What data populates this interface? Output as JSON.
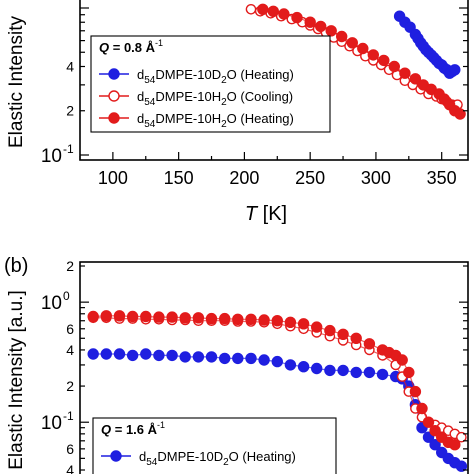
{
  "chart_data": [
    {
      "panel": "a",
      "type": "scatter",
      "xlabel": "T [K]",
      "ylabel": "Elastic Intensity",
      "xlim": [
        75,
        370
      ],
      "ylim_log": [
        0.1,
        1.0
      ],
      "log_y": true,
      "x_ticks": [
        100,
        150,
        200,
        250,
        300,
        350
      ],
      "x_tick_labels": [
        "100",
        "150",
        "200",
        "250",
        "300",
        "350"
      ],
      "y_major_ticks": [
        {
          "value": 0.1,
          "base": "10",
          "exp": "-1"
        }
      ],
      "y_minor_labels": [
        {
          "value": 0.2,
          "label": "2"
        },
        {
          "value": 0.4,
          "label": "4"
        }
      ],
      "legend": {
        "q_label": "Q = 0.8 Å",
        "q_exp": "-1",
        "entries": [
          {
            "label_pre": "d",
            "label_sub1": "54",
            "label_mid": "DMPE-10D",
            "label_sub2": "2",
            "label_post": "O (Heating)",
            "color": "#1f1fe0",
            "marker": "filled"
          },
          {
            "label_pre": "d",
            "label_sub1": "54",
            "label_mid": "DMPE-10H",
            "label_sub2": "2",
            "label_post": "O (Cooling)",
            "color": "#e21b1b",
            "marker": "open"
          },
          {
            "label_pre": "d",
            "label_sub1": "54",
            "label_mid": "DMPE-10H",
            "label_sub2": "2",
            "label_post": "O (Heating)",
            "color": "#e21b1b",
            "marker": "filled"
          }
        ]
      },
      "series": [
        {
          "name": "d54DMPE-10D2O (Heating)",
          "color": "#1f1fe0",
          "marker": "filled",
          "x": [
            318,
            322,
            326,
            330,
            332,
            334,
            336,
            338,
            340,
            342,
            344,
            346,
            348,
            350,
            352,
            354,
            356,
            358,
            360
          ],
          "y": [
            0.88,
            0.8,
            0.74,
            0.66,
            0.62,
            0.58,
            0.55,
            0.52,
            0.5,
            0.48,
            0.46,
            0.44,
            0.42,
            0.41,
            0.39,
            0.38,
            0.36,
            0.37,
            0.38
          ]
        },
        {
          "name": "d54DMPE-10H2O (Cooling)",
          "color": "#e21b1b",
          "marker": "open",
          "x": [
            205,
            212,
            220,
            228,
            236,
            244,
            250,
            256,
            262,
            268,
            274,
            280,
            286,
            292,
            298,
            304,
            310,
            316,
            322,
            328,
            334,
            340,
            346,
            350,
            354,
            358,
            362
          ],
          "y": [
            0.98,
            0.95,
            0.92,
            0.88,
            0.84,
            0.8,
            0.76,
            0.72,
            0.68,
            0.63,
            0.59,
            0.55,
            0.51,
            0.47,
            0.44,
            0.41,
            0.38,
            0.35,
            0.32,
            0.3,
            0.28,
            0.26,
            0.25,
            0.24,
            0.23,
            0.22,
            0.22
          ]
        },
        {
          "name": "d54DMPE-10H2O (Heating)",
          "color": "#e21b1b",
          "marker": "filled",
          "x": [
            214,
            222,
            230,
            240,
            250,
            258,
            266,
            274,
            282,
            290,
            298,
            306,
            314,
            322,
            330,
            336,
            342,
            348,
            352,
            356,
            360,
            364
          ],
          "y": [
            0.98,
            0.95,
            0.91,
            0.86,
            0.8,
            0.75,
            0.7,
            0.64,
            0.58,
            0.53,
            0.48,
            0.44,
            0.4,
            0.36,
            0.33,
            0.3,
            0.28,
            0.26,
            0.24,
            0.22,
            0.2,
            0.19
          ]
        }
      ]
    },
    {
      "panel": "b",
      "type": "scatter",
      "panel_label": "(b)",
      "ylabel": "Elastic Intensity [a.u.]",
      "xlim": [
        75,
        370
      ],
      "ylim_log": [
        0.04,
        2.0
      ],
      "log_y": true,
      "y_major_ticks": [
        {
          "value": 1.0,
          "base": "10",
          "exp": "0"
        },
        {
          "value": 0.1,
          "base": "10",
          "exp": "-1"
        }
      ],
      "y_minor_labels": [
        {
          "value": 2.0,
          "label": "2"
        },
        {
          "value": 0.6,
          "label": "6"
        },
        {
          "value": 0.4,
          "label": "4"
        },
        {
          "value": 0.2,
          "label": "2"
        },
        {
          "value": 0.06,
          "label": "6"
        },
        {
          "value": 0.04,
          "label": "4"
        }
      ],
      "legend": {
        "q_label": "Q = 1.6 Å",
        "q_exp": "-1",
        "entries": [
          {
            "label_pre": "d",
            "label_sub1": "54",
            "label_mid": "DMPE-10D",
            "label_sub2": "2",
            "label_post": "O (Heating)",
            "color": "#1f1fe0",
            "marker": "filled"
          }
        ]
      },
      "series": [
        {
          "name": "d54DMPE-10D2O (Heating)",
          "color": "#1f1fe0",
          "marker": "filled",
          "x": [
            85,
            95,
            105,
            115,
            125,
            135,
            145,
            155,
            165,
            175,
            185,
            195,
            205,
            215,
            225,
            235,
            245,
            255,
            265,
            275,
            285,
            295,
            305,
            315,
            320,
            325,
            330,
            335,
            340,
            345,
            350,
            355,
            360,
            365
          ],
          "y": [
            0.37,
            0.37,
            0.37,
            0.36,
            0.37,
            0.36,
            0.36,
            0.35,
            0.35,
            0.35,
            0.34,
            0.34,
            0.34,
            0.33,
            0.32,
            0.3,
            0.29,
            0.28,
            0.27,
            0.27,
            0.26,
            0.26,
            0.25,
            0.24,
            0.23,
            0.2,
            0.14,
            0.09,
            0.075,
            0.065,
            0.056,
            0.05,
            0.046,
            0.043
          ]
        },
        {
          "name": "d54DMPE-10H2O (Cooling)",
          "color": "#e21b1b",
          "marker": "open",
          "x": [
            85,
            95,
            105,
            115,
            125,
            135,
            145,
            155,
            165,
            175,
            185,
            195,
            205,
            215,
            225,
            235,
            245,
            255,
            265,
            275,
            285,
            295,
            305,
            315,
            320,
            325,
            330,
            335,
            340,
            345,
            350,
            355,
            360,
            365
          ],
          "y": [
            0.74,
            0.74,
            0.73,
            0.73,
            0.72,
            0.72,
            0.71,
            0.71,
            0.7,
            0.7,
            0.7,
            0.69,
            0.69,
            0.68,
            0.66,
            0.63,
            0.6,
            0.56,
            0.52,
            0.48,
            0.44,
            0.4,
            0.36,
            0.3,
            0.24,
            0.18,
            0.13,
            0.11,
            0.1,
            0.095,
            0.09,
            0.085,
            0.08,
            0.075
          ]
        },
        {
          "name": "d54DMPE-10H2O (Heating)",
          "color": "#e21b1b",
          "marker": "filled",
          "x": [
            85,
            95,
            105,
            115,
            125,
            135,
            145,
            155,
            165,
            175,
            185,
            195,
            205,
            215,
            225,
            235,
            245,
            255,
            265,
            275,
            285,
            295,
            305,
            310,
            315,
            320,
            325,
            330,
            335,
            340,
            345,
            350,
            355,
            360
          ],
          "y": [
            0.76,
            0.77,
            0.77,
            0.76,
            0.76,
            0.75,
            0.75,
            0.74,
            0.74,
            0.73,
            0.73,
            0.72,
            0.72,
            0.71,
            0.7,
            0.68,
            0.66,
            0.62,
            0.58,
            0.54,
            0.5,
            0.45,
            0.4,
            0.38,
            0.36,
            0.33,
            0.26,
            0.18,
            0.13,
            0.1,
            0.085,
            0.075,
            0.068,
            0.065
          ]
        }
      ]
    }
  ]
}
